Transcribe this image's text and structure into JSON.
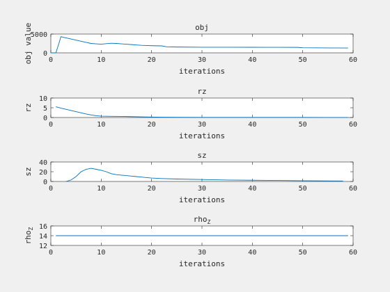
{
  "chart_data": [
    {
      "type": "line",
      "title": "obj",
      "xlabel": "iterations",
      "ylabel": "obj value",
      "xlim": [
        0,
        60
      ],
      "ylim": [
        0,
        5000
      ],
      "xticks": [
        0,
        10,
        20,
        30,
        40,
        50,
        60
      ],
      "yticks": [
        0,
        5000
      ],
      "grid": false,
      "series": [
        {
          "color": "#0072bd",
          "x": [
            0,
            1,
            1.6,
            2,
            3,
            4,
            5,
            6,
            7,
            8,
            9,
            10,
            11,
            12,
            13,
            14,
            15,
            16,
            17,
            18,
            19,
            20,
            22,
            23,
            25,
            30,
            35,
            40,
            45,
            49,
            50,
            55,
            59
          ],
          "y": [
            0,
            0,
            2500,
            4300,
            4000,
            3700,
            3400,
            3100,
            2800,
            2500,
            2400,
            2300,
            2450,
            2550,
            2500,
            2400,
            2300,
            2200,
            2100,
            2000,
            1950,
            1900,
            1850,
            1600,
            1550,
            1500,
            1500,
            1480,
            1470,
            1460,
            1350,
            1300,
            1280
          ]
        }
      ]
    },
    {
      "type": "line",
      "title": "rz",
      "xlabel": "iterations",
      "ylabel": "rz",
      "xlim": [
        0,
        60
      ],
      "ylim": [
        0,
        10
      ],
      "xticks": [
        0,
        10,
        20,
        30,
        40,
        50,
        60
      ],
      "yticks": [
        0,
        5,
        10
      ],
      "grid": false,
      "series": [
        {
          "color": "#0072bd",
          "x": [
            1,
            2,
            3,
            4,
            5,
            6,
            7,
            8,
            9,
            10,
            12,
            14,
            16,
            18,
            20,
            22,
            25,
            30,
            35,
            40,
            45,
            50,
            55,
            59
          ],
          "y": [
            5.5,
            4.8,
            4.2,
            3.6,
            3.0,
            2.4,
            1.8,
            1.3,
            0.9,
            0.7,
            0.6,
            0.55,
            0.45,
            0.35,
            0.25,
            0.15,
            0.1,
            0.08,
            0.07,
            0.06,
            0.05,
            0.05,
            0.04,
            0.04
          ]
        }
      ]
    },
    {
      "type": "line",
      "title": "sz",
      "xlabel": "iterations",
      "ylabel": "sz",
      "xlim": [
        0,
        60
      ],
      "ylim": [
        0,
        40
      ],
      "xticks": [
        0,
        10,
        20,
        30,
        40,
        50,
        60
      ],
      "yticks": [
        0,
        20,
        40
      ],
      "grid": false,
      "series": [
        {
          "color": "#0072bd",
          "x": [
            3,
            4,
            5,
            6,
            7,
            8,
            9,
            10,
            11,
            12,
            13,
            14,
            15,
            16,
            17,
            18,
            19,
            20,
            22,
            25,
            30,
            35,
            40,
            45,
            50,
            55,
            58
          ],
          "y": [
            0,
            3,
            10,
            20,
            25,
            27,
            25,
            23,
            20,
            16,
            14,
            13,
            12,
            11,
            10,
            9,
            8,
            7,
            6,
            5,
            4,
            3,
            2.5,
            2,
            1.5,
            1.2,
            1
          ]
        }
      ]
    },
    {
      "type": "line",
      "title": "rho",
      "title_subscript": "Z",
      "xlabel": "iterations",
      "ylabel": "rho",
      "ylabel_subscript": "Z",
      "xlim": [
        0,
        60
      ],
      "ylim": [
        12,
        16
      ],
      "xticks": [
        0,
        10,
        20,
        30,
        40,
        50,
        60
      ],
      "yticks": [
        12,
        14,
        16
      ],
      "grid": false,
      "series": [
        {
          "color": "#0072bd",
          "x": [
            1,
            59
          ],
          "y": [
            14,
            14
          ]
        }
      ]
    }
  ]
}
